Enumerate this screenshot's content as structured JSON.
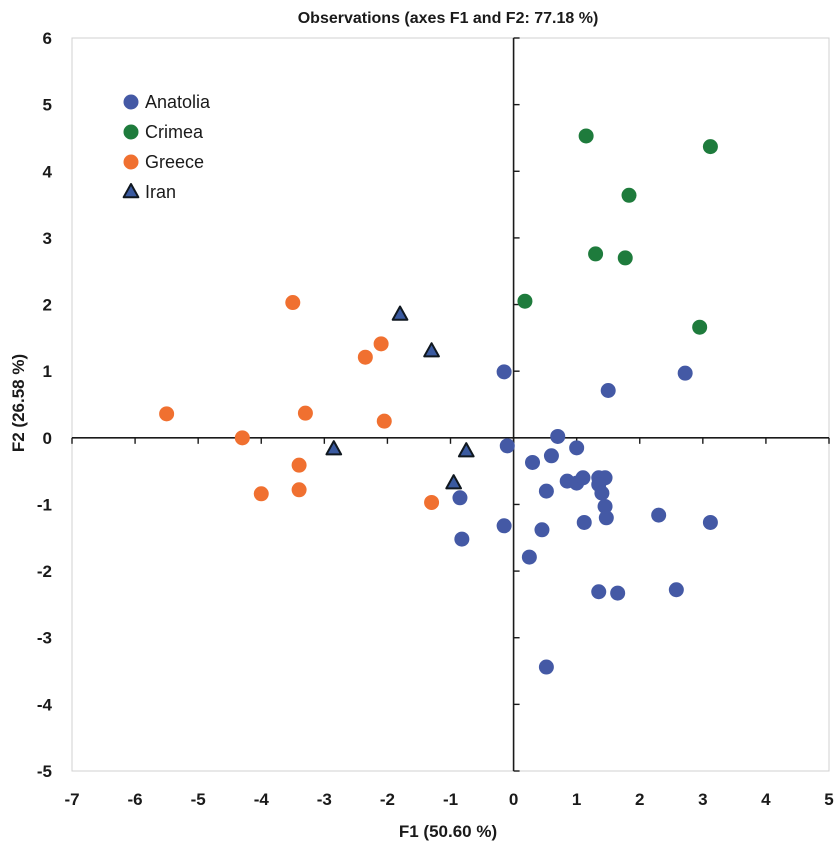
{
  "chart_data": {
    "type": "scatter",
    "title": "Observations (axes F1 and F2: 77.18 %)",
    "xlabel": "F1 (50.60 %)",
    "ylabel": "F2 (26.58 %)",
    "xlim": [
      -7,
      5
    ],
    "ylim": [
      -5,
      6
    ],
    "xticks": [
      -7,
      -6,
      -5,
      -4,
      -3,
      -2,
      -1,
      0,
      1,
      2,
      3,
      4,
      5
    ],
    "yticks": [
      -5,
      -4,
      -3,
      -2,
      -1,
      0,
      1,
      2,
      3,
      4,
      5,
      6
    ],
    "grid": false,
    "legend_position": "top-left",
    "series": [
      {
        "name": "Anatolia",
        "marker": "circle",
        "color": "#4459a5",
        "points": [
          [
            -0.15,
            0.99
          ],
          [
            1.5,
            0.71
          ],
          [
            2.72,
            0.97
          ],
          [
            0.7,
            0.02
          ],
          [
            1.0,
            -0.15
          ],
          [
            -0.1,
            -0.12
          ],
          [
            0.3,
            -0.37
          ],
          [
            0.6,
            -0.27
          ],
          [
            0.85,
            -0.65
          ],
          [
            1.0,
            -0.68
          ],
          [
            1.1,
            -0.6
          ],
          [
            1.35,
            -0.6
          ],
          [
            1.45,
            -0.6
          ],
          [
            1.35,
            -0.7
          ],
          [
            1.4,
            -0.83
          ],
          [
            1.45,
            -1.03
          ],
          [
            1.47,
            -1.2
          ],
          [
            1.12,
            -1.27
          ],
          [
            0.52,
            -0.8
          ],
          [
            0.45,
            -1.38
          ],
          [
            -0.15,
            -1.32
          ],
          [
            0.25,
            -1.79
          ],
          [
            -0.85,
            -0.9
          ],
          [
            -0.82,
            -1.52
          ],
          [
            1.35,
            -2.31
          ],
          [
            1.65,
            -2.33
          ],
          [
            2.3,
            -1.16
          ],
          [
            3.12,
            -1.27
          ],
          [
            2.58,
            -2.28
          ],
          [
            0.52,
            -3.44
          ]
        ]
      },
      {
        "name": "Crimea",
        "marker": "circle",
        "color": "#1e7b3c",
        "points": [
          [
            1.15,
            4.53
          ],
          [
            3.12,
            4.37
          ],
          [
            1.83,
            3.64
          ],
          [
            1.3,
            2.76
          ],
          [
            1.77,
            2.7
          ],
          [
            0.18,
            2.05
          ],
          [
            2.95,
            1.66
          ]
        ]
      },
      {
        "name": "Greece",
        "marker": "circle",
        "color": "#f07030",
        "points": [
          [
            -3.5,
            2.03
          ],
          [
            -2.1,
            1.41
          ],
          [
            -2.35,
            1.21
          ],
          [
            -5.5,
            0.36
          ],
          [
            -3.3,
            0.37
          ],
          [
            -2.05,
            0.25
          ],
          [
            -4.3,
            0.0
          ],
          [
            -3.4,
            -0.41
          ],
          [
            -3.4,
            -0.78
          ],
          [
            -4.0,
            -0.84
          ],
          [
            -1.3,
            -0.97
          ]
        ]
      },
      {
        "name": "Iran",
        "marker": "triangle",
        "color": "#3a5aa0",
        "points": [
          [
            -1.8,
            1.85
          ],
          [
            -1.3,
            1.3
          ],
          [
            -2.85,
            -0.17
          ],
          [
            -0.75,
            -0.2
          ],
          [
            -0.95,
            -0.68
          ]
        ]
      }
    ]
  }
}
